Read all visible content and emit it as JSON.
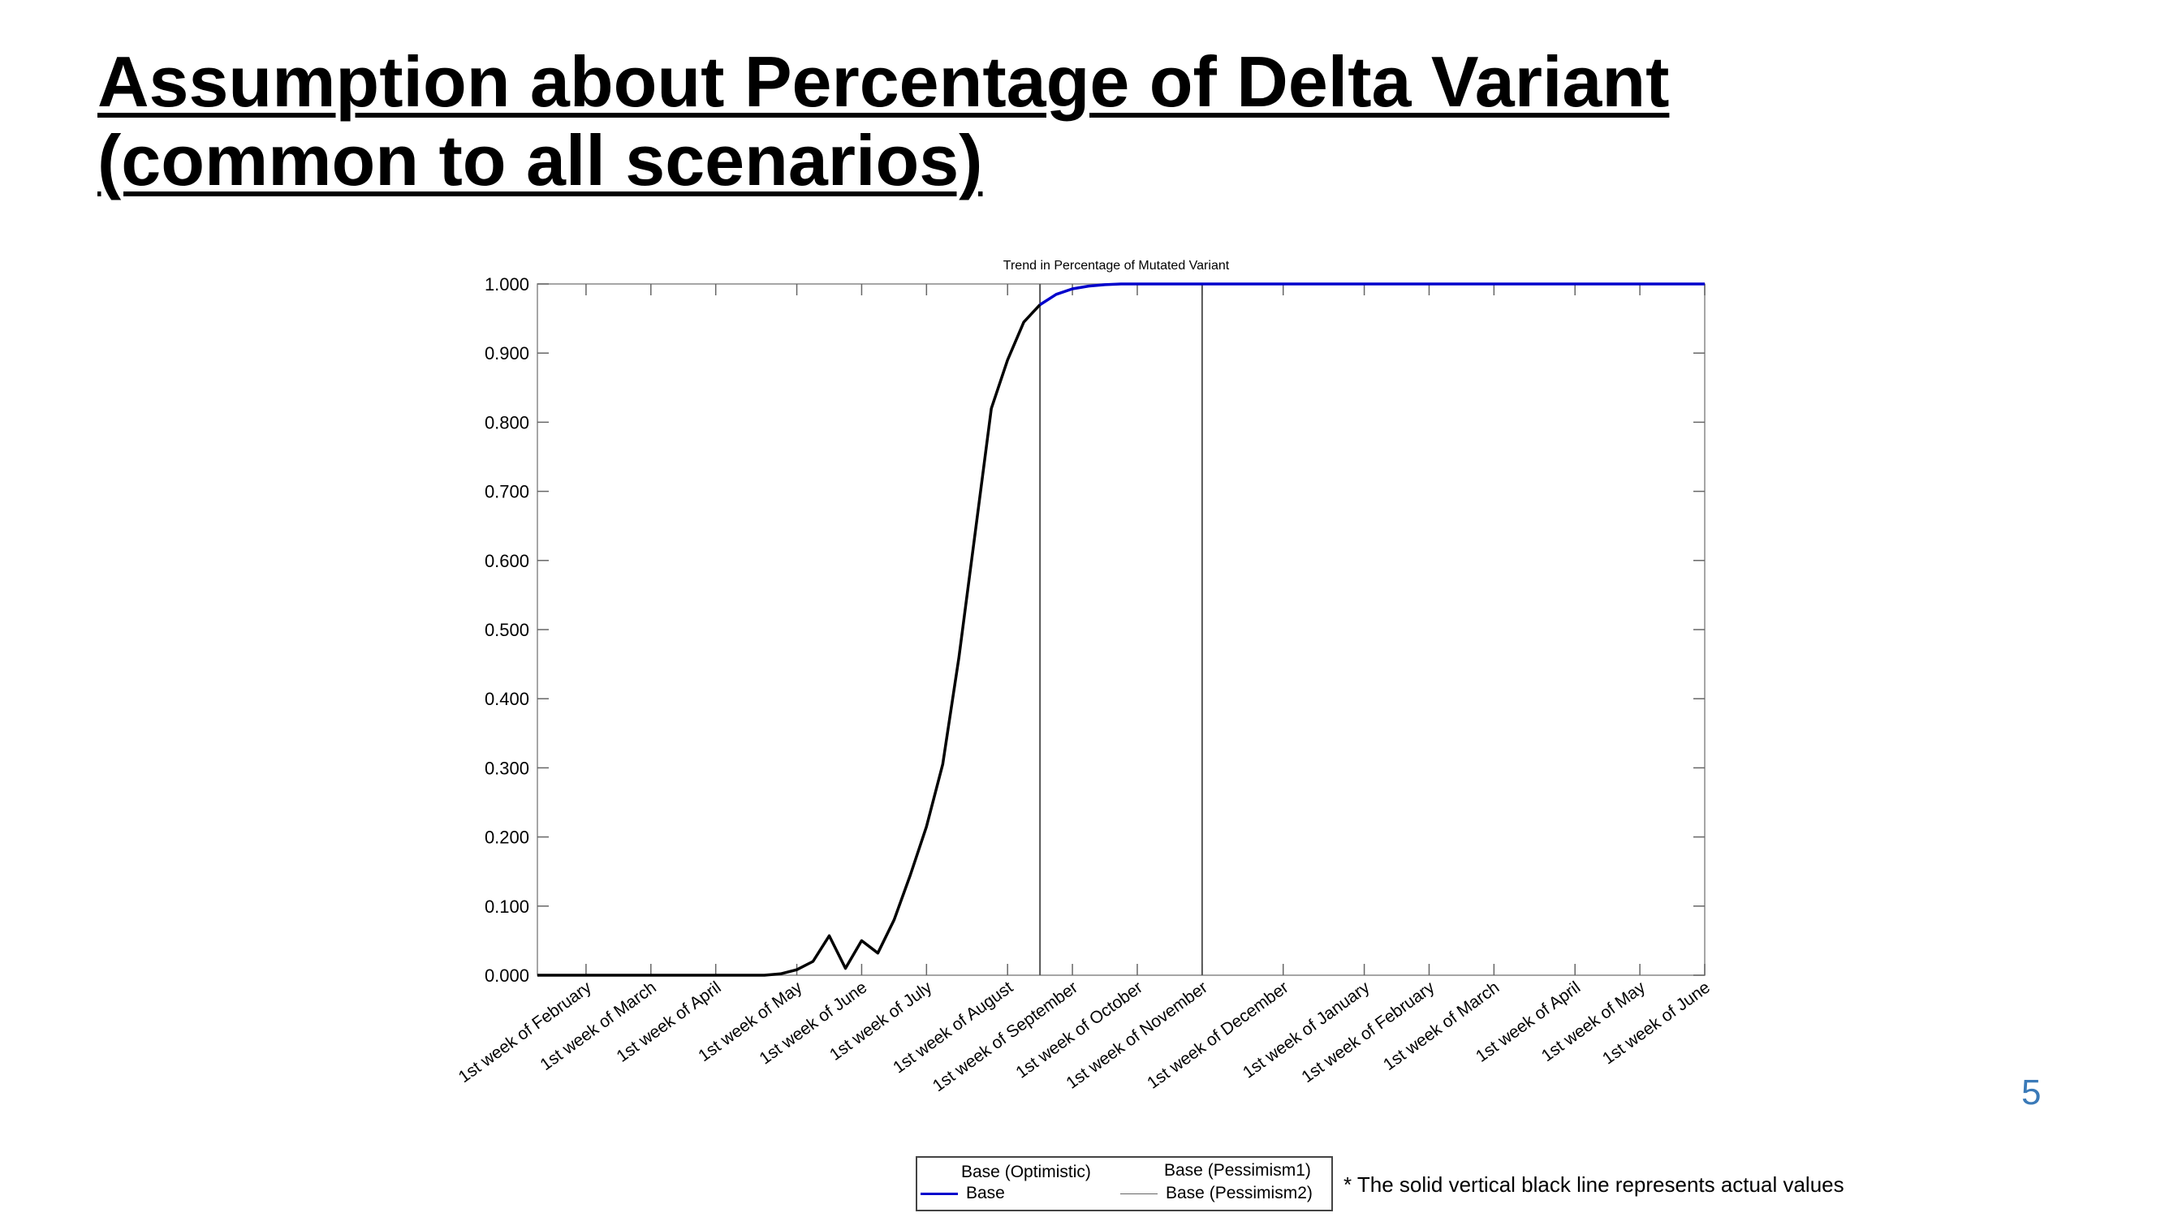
{
  "slide": {
    "title_line1": "Assumption about Percentage of Delta Variant",
    "title_line2": "(common to all scenarios)",
    "page_number": "5",
    "footnote": "* The solid vertical black line represents actual values"
  },
  "chart_data": {
    "type": "line",
    "title": "Trend in Percentage of Mutated Variant",
    "xlabel": "",
    "ylabel": "",
    "ylim": [
      0,
      1
    ],
    "yticks": [
      "0.000",
      "0.100",
      "0.200",
      "0.300",
      "0.400",
      "0.500",
      "0.600",
      "0.700",
      "0.800",
      "0.900",
      "1.000"
    ],
    "xticks": [
      "1st week of February",
      "1st week of March",
      "1st week of April",
      "1st week of May",
      "1st week of June",
      "1st week of July",
      "1st week of August",
      "1st week of September",
      "1st week of October",
      "1st week of November",
      "1st week of December",
      "1st week of January",
      "1st week of February",
      "1st week of March",
      "1st week of April",
      "1st week of May",
      "1st week of June"
    ],
    "x_unit": "week",
    "x_range": [
      0,
      72
    ],
    "xtick_weeks": [
      3,
      7,
      11,
      16,
      20,
      24,
      29,
      33,
      37,
      41,
      46,
      51,
      55,
      59,
      64,
      68,
      72
    ],
    "actual_value_lines_weeks": [
      31,
      41
    ],
    "grid": false,
    "legend": [
      "Base (Optimistic)",
      "Base",
      "Base (Pessimism1)",
      "Base (Pessimism2)"
    ],
    "legend_placement": "bottom",
    "series": [
      {
        "name": "actual",
        "color": "#000000",
        "x": [
          0,
          5,
          10,
          14,
          15,
          16,
          17,
          18,
          19,
          20,
          21,
          22,
          23,
          24,
          25,
          26,
          27,
          28,
          29,
          30,
          31
        ],
        "y": [
          0.0,
          0.0,
          0.0,
          0.0,
          0.002,
          0.008,
          0.02,
          0.057,
          0.01,
          0.05,
          0.032,
          0.08,
          0.145,
          0.215,
          0.305,
          0.46,
          0.64,
          0.82,
          0.89,
          0.945,
          0.97
        ]
      },
      {
        "name": "Base",
        "color": "#0000cc",
        "x": [
          31,
          32,
          33,
          34,
          35,
          36,
          38,
          40,
          44,
          50,
          60,
          72
        ],
        "y": [
          0.97,
          0.985,
          0.993,
          0.997,
          0.999,
          1.0,
          1.0,
          1.0,
          1.0,
          1.0,
          1.0,
          1.0
        ]
      }
    ]
  }
}
